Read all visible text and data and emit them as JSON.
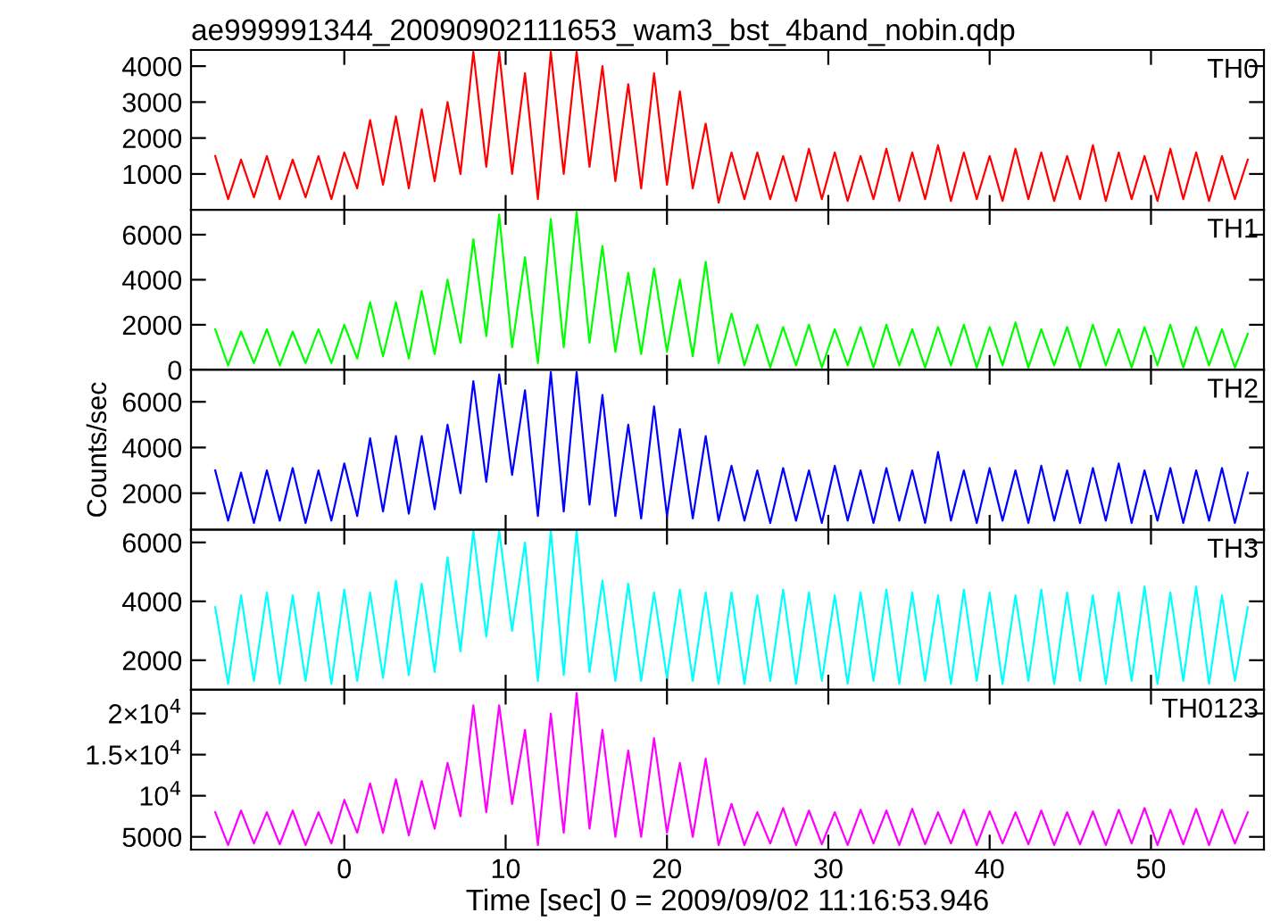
{
  "chart_data": [
    {
      "type": "line",
      "title": "ae999991344_20090902111653_wam3_bst_4band_nobin.qdp",
      "tick_labels": "y",
      "grid": false,
      "legend": false,
      "x": [
        -8,
        -7.2,
        -6.4,
        -5.6,
        -4.8,
        -4,
        -3.2,
        -2.4,
        -1.6,
        -0.8,
        0,
        0.8,
        1.6,
        2.4,
        3.2,
        4,
        4.8,
        5.6,
        6.4,
        7.2,
        8,
        8.8,
        9.6,
        10.4,
        11.2,
        12,
        12.8,
        13.6,
        14.4,
        15.2,
        16,
        16.8,
        17.6,
        18.4,
        19.2,
        20,
        20.8,
        21.6,
        22.4,
        23.2,
        24,
        24.8,
        25.6,
        26.4,
        27.2,
        28,
        28.8,
        29.6,
        30.4,
        31.2,
        32,
        32.8,
        33.6,
        34.4,
        35.2,
        36,
        36.8,
        37.6,
        38.4,
        39.2,
        40,
        40.8,
        41.6,
        42.4,
        43.2,
        44,
        44.8,
        45.6,
        46.4,
        47.2,
        48,
        48.8,
        49.6,
        50.4,
        51.2,
        52,
        52.8,
        53.6,
        54.4,
        55.2,
        56
      ],
      "xlim": [
        -9.5,
        57
      ],
      "xticks": [
        0,
        10,
        20,
        30,
        40,
        50
      ],
      "ylim": [
        0,
        4450
      ],
      "yticks": [
        1000,
        2000,
        3000,
        4000
      ],
      "series": [
        {
          "name": "TH0",
          "color": "#ff0000",
          "values": [
            1500,
            300,
            1400,
            350,
            1500,
            300,
            1400,
            350,
            1500,
            300,
            1600,
            600,
            2500,
            700,
            2600,
            600,
            2800,
            800,
            3000,
            1000,
            4400,
            1200,
            4400,
            1000,
            3800,
            300,
            4400,
            1000,
            4400,
            1200,
            4000,
            800,
            3500,
            600,
            3800,
            700,
            3300,
            600,
            2400,
            200,
            1600,
            300,
            1600,
            300,
            1500,
            250,
            1700,
            300,
            1600,
            250,
            1500,
            300,
            1700,
            250,
            1600,
            300,
            1800,
            250,
            1600,
            300,
            1500,
            250,
            1700,
            300,
            1600,
            250,
            1500,
            300,
            1800,
            250,
            1600,
            300,
            1500,
            250,
            1700,
            300,
            1600,
            250,
            1500,
            300,
            1400
          ]
        }
      ]
    },
    {
      "type": "line",
      "tick_labels": "y",
      "grid": false,
      "legend": false,
      "x": [
        -8,
        -7.2,
        -6.4,
        -5.6,
        -4.8,
        -4,
        -3.2,
        -2.4,
        -1.6,
        -0.8,
        0,
        0.8,
        1.6,
        2.4,
        3.2,
        4,
        4.8,
        5.6,
        6.4,
        7.2,
        8,
        8.8,
        9.6,
        10.4,
        11.2,
        12,
        12.8,
        13.6,
        14.4,
        15.2,
        16,
        16.8,
        17.6,
        18.4,
        19.2,
        20,
        20.8,
        21.6,
        22.4,
        23.2,
        24,
        24.8,
        25.6,
        26.4,
        27.2,
        28,
        28.8,
        29.6,
        30.4,
        31.2,
        32,
        32.8,
        33.6,
        34.4,
        35.2,
        36,
        36.8,
        37.6,
        38.4,
        39.2,
        40,
        40.8,
        41.6,
        42.4,
        43.2,
        44,
        44.8,
        45.6,
        46.4,
        47.2,
        48,
        48.8,
        49.6,
        50.4,
        51.2,
        52,
        52.8,
        53.6,
        54.4,
        55.2,
        56
      ],
      "xlim": [
        -9.5,
        57
      ],
      "xticks": [
        0,
        10,
        20,
        30,
        40,
        50
      ],
      "ylim": [
        0,
        7100
      ],
      "yticks": [
        0,
        2000,
        4000,
        6000
      ],
      "series": [
        {
          "name": "TH1",
          "color": "#00ff00",
          "values": [
            1800,
            200,
            1700,
            300,
            1800,
            200,
            1700,
            300,
            1800,
            300,
            2000,
            500,
            3000,
            600,
            3000,
            500,
            3500,
            700,
            4000,
            1200,
            5800,
            1500,
            6900,
            1000,
            5000,
            300,
            6700,
            1000,
            7000,
            1200,
            5500,
            800,
            4300,
            700,
            4500,
            800,
            4000,
            600,
            4800,
            300,
            2500,
            200,
            2000,
            100,
            1900,
            200,
            2000,
            100,
            1800,
            200,
            1900,
            100,
            2000,
            200,
            1800,
            100,
            1900,
            200,
            2000,
            100,
            1900,
            200,
            2100,
            100,
            1800,
            200,
            1900,
            100,
            2000,
            200,
            1800,
            100,
            1900,
            200,
            2000,
            100,
            1900,
            200,
            1800,
            100,
            1600
          ]
        }
      ]
    },
    {
      "type": "line",
      "tick_labels": "y",
      "ylabel": "Counts/sec",
      "grid": false,
      "legend": false,
      "x": [
        -8,
        -7.2,
        -6.4,
        -5.6,
        -4.8,
        -4,
        -3.2,
        -2.4,
        -1.6,
        -0.8,
        0,
        0.8,
        1.6,
        2.4,
        3.2,
        4,
        4.8,
        5.6,
        6.4,
        7.2,
        8,
        8.8,
        9.6,
        10.4,
        11.2,
        12,
        12.8,
        13.6,
        14.4,
        15.2,
        16,
        16.8,
        17.6,
        18.4,
        19.2,
        20,
        20.8,
        21.6,
        22.4,
        23.2,
        24,
        24.8,
        25.6,
        26.4,
        27.2,
        28,
        28.8,
        29.6,
        30.4,
        31.2,
        32,
        32.8,
        33.6,
        34.4,
        35.2,
        36,
        36.8,
        37.6,
        38.4,
        39.2,
        40,
        40.8,
        41.6,
        42.4,
        43.2,
        44,
        44.8,
        45.6,
        46.4,
        47.2,
        48,
        48.8,
        49.6,
        50.4,
        51.2,
        52,
        52.8,
        53.6,
        54.4,
        55.2,
        56
      ],
      "xlim": [
        -9.5,
        57
      ],
      "xticks": [
        0,
        10,
        20,
        30,
        40,
        50
      ],
      "ylim": [
        400,
        7400
      ],
      "yticks": [
        2000,
        4000,
        6000
      ],
      "series": [
        {
          "name": "TH2",
          "color": "#0000ff",
          "values": [
            3000,
            800,
            2900,
            700,
            3000,
            800,
            3100,
            700,
            3000,
            800,
            3300,
            1000,
            4400,
            1200,
            4500,
            1100,
            4500,
            1300,
            5000,
            2000,
            6900,
            2500,
            7200,
            2800,
            6500,
            1000,
            7300,
            1200,
            7300,
            1500,
            6300,
            1000,
            5000,
            900,
            5800,
            1000,
            4800,
            900,
            4500,
            800,
            3200,
            800,
            3000,
            700,
            3100,
            800,
            3000,
            700,
            3200,
            800,
            3000,
            700,
            3100,
            800,
            3000,
            700,
            3800,
            800,
            3000,
            700,
            3100,
            800,
            3000,
            700,
            3200,
            800,
            3000,
            700,
            3100,
            800,
            3300,
            700,
            3000,
            800,
            3100,
            700,
            3000,
            800,
            3100,
            700,
            2900
          ]
        }
      ]
    },
    {
      "type": "line",
      "tick_labels": "y",
      "grid": false,
      "legend": false,
      "x": [
        -8,
        -7.2,
        -6.4,
        -5.6,
        -4.8,
        -4,
        -3.2,
        -2.4,
        -1.6,
        -0.8,
        0,
        0.8,
        1.6,
        2.4,
        3.2,
        4,
        4.8,
        5.6,
        6.4,
        7.2,
        8,
        8.8,
        9.6,
        10.4,
        11.2,
        12,
        12.8,
        13.6,
        14.4,
        15.2,
        16,
        16.8,
        17.6,
        18.4,
        19.2,
        20,
        20.8,
        21.6,
        22.4,
        23.2,
        24,
        24.8,
        25.6,
        26.4,
        27.2,
        28,
        28.8,
        29.6,
        30.4,
        31.2,
        32,
        32.8,
        33.6,
        34.4,
        35.2,
        36,
        36.8,
        37.6,
        38.4,
        39.2,
        40,
        40.8,
        41.6,
        42.4,
        43.2,
        44,
        44.8,
        45.6,
        46.4,
        47.2,
        48,
        48.8,
        49.6,
        50.4,
        51.2,
        52,
        52.8,
        53.6,
        54.4,
        55.2,
        56
      ],
      "xlim": [
        -9.5,
        57
      ],
      "xticks": [
        0,
        10,
        20,
        30,
        40,
        50
      ],
      "ylim": [
        1000,
        6430
      ],
      "yticks": [
        2000,
        4000,
        6000
      ],
      "series": [
        {
          "name": "TH3",
          "color": "#00ffff",
          "values": [
            3800,
            1200,
            4200,
            1300,
            4300,
            1200,
            4200,
            1300,
            4300,
            1200,
            4400,
            1300,
            4300,
            1400,
            4700,
            1500,
            4600,
            1600,
            5500,
            2300,
            6400,
            2800,
            6400,
            3000,
            6000,
            1300,
            6400,
            1500,
            6400,
            1600,
            4700,
            1300,
            4600,
            1300,
            4300,
            1400,
            4400,
            1300,
            4300,
            1200,
            4300,
            1200,
            4200,
            1300,
            4400,
            1200,
            4300,
            1300,
            4200,
            1200,
            4300,
            1300,
            4400,
            1200,
            4300,
            1300,
            4200,
            1200,
            4400,
            1300,
            4300,
            1200,
            4200,
            1300,
            4400,
            1200,
            4300,
            1300,
            4200,
            1200,
            4300,
            1300,
            4500,
            1200,
            4300,
            1300,
            4500,
            1200,
            4200,
            1300,
            3800
          ]
        }
      ]
    },
    {
      "type": "line",
      "xlabel": "Time [sec] 0 = 2009/09/02 11:16:53.946",
      "grid": false,
      "legend": false,
      "x": [
        -8,
        -7.2,
        -6.4,
        -5.6,
        -4.8,
        -4,
        -3.2,
        -2.4,
        -1.6,
        -0.8,
        0,
        0.8,
        1.6,
        2.4,
        3.2,
        4,
        4.8,
        5.6,
        6.4,
        7.2,
        8,
        8.8,
        9.6,
        10.4,
        11.2,
        12,
        12.8,
        13.6,
        14.4,
        15.2,
        16,
        16.8,
        17.6,
        18.4,
        19.2,
        20,
        20.8,
        21.6,
        22.4,
        23.2,
        24,
        24.8,
        25.6,
        26.4,
        27.2,
        28,
        28.8,
        29.6,
        30.4,
        31.2,
        32,
        32.8,
        33.6,
        34.4,
        35.2,
        36,
        36.8,
        37.6,
        38.4,
        39.2,
        40,
        40.8,
        41.6,
        42.4,
        43.2,
        44,
        44.8,
        45.6,
        46.4,
        47.2,
        48,
        48.8,
        49.6,
        50.4,
        51.2,
        52,
        52.8,
        53.6,
        54.4,
        55.2,
        56
      ],
      "xlim": [
        -9.5,
        57
      ],
      "xticks": [
        0,
        10,
        20,
        30,
        40,
        50
      ],
      "ylim": [
        3450,
        22900
      ],
      "yticks": [
        5000,
        {
          "value": 10000,
          "label": "10$^{4}$"
        },
        {
          "value": 15000,
          "label": "1.5×10$^{4}$"
        },
        {
          "value": 20000,
          "label": "2×10$^{4}$"
        }
      ],
      "series": [
        {
          "name": "TH0123",
          "color": "#ff00ff",
          "values": [
            8000,
            4000,
            8200,
            4200,
            8000,
            4100,
            8200,
            4000,
            8000,
            4200,
            9500,
            5500,
            11500,
            5500,
            12000,
            5200,
            11800,
            6000,
            14000,
            7500,
            21000,
            8000,
            21000,
            9000,
            18000,
            4000,
            20000,
            5500,
            22500,
            6000,
            18000,
            5000,
            15500,
            5000,
            17000,
            5500,
            14000,
            5000,
            14500,
            4000,
            9000,
            4000,
            8000,
            4200,
            8500,
            4000,
            8200,
            4100,
            8000,
            4000,
            8300,
            4200,
            8200,
            4000,
            8400,
            4100,
            8000,
            4200,
            8300,
            4000,
            8100,
            4200,
            8000,
            4100,
            8200,
            4000,
            8000,
            4100,
            8100,
            4000,
            8300,
            4200,
            8500,
            4000,
            8300,
            4100,
            8400,
            4000,
            8300,
            4200,
            8000
          ]
        }
      ]
    }
  ]
}
